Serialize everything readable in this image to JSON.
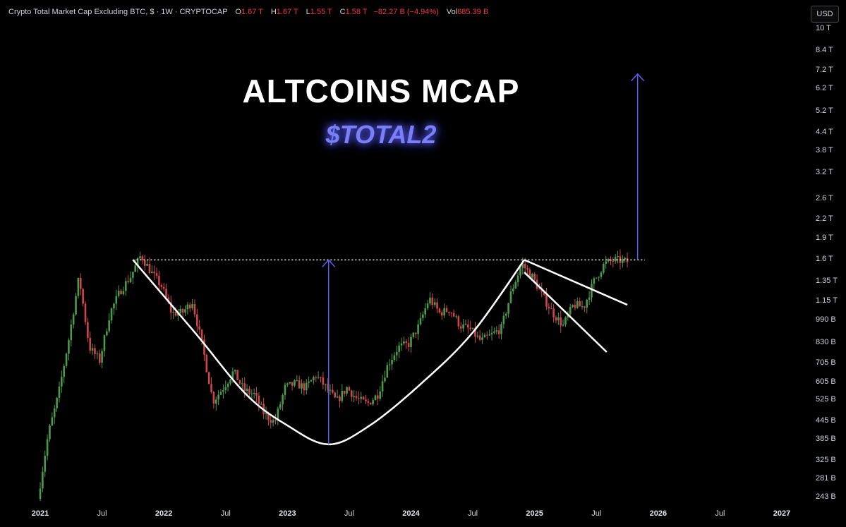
{
  "header": {
    "symbol": "Crypto Total Market Cap Excluding BTC, $ · 1W · CRYPTOCAP",
    "open_label": "O",
    "open": "1.67 T",
    "high_label": "H",
    "high": "1.67 T",
    "low_label": "L",
    "low": "1.55 T",
    "close_label": "C",
    "close": "1.58 T",
    "change": "−82.27 B (−4.94%)",
    "vol_label": "Vol",
    "vol": "685.39 B"
  },
  "currency_button": "USD",
  "overlay": {
    "title": "ALTCOINS MCAP",
    "subtitle": "$TOTAL2"
  },
  "colors": {
    "up": "#4c9a4c",
    "down": "#d0454c",
    "arrow": "#5b5ff0",
    "annotation": "#ffffff",
    "background": "#000000"
  },
  "chart_data": {
    "type": "candlestick",
    "title": "Crypto Total Market Cap Excluding BTC",
    "interval": "1W",
    "scale": "log",
    "ylim": [
      0.23,
      11.5
    ],
    "x_start": "2021-01",
    "x_end": "2027-02",
    "y_tick_labels": [
      "10 T",
      "8.4 T",
      "7.2 T",
      "6.2 T",
      "5.2 T",
      "4.4 T",
      "3.8 T",
      "3.2 T",
      "2.6 T",
      "2.2 T",
      "1.9 T",
      "1.6 T",
      "1.35 T",
      "1.15 T",
      "990 B",
      "830 B",
      "705 B",
      "605 B",
      "525 B",
      "445 B",
      "385 B",
      "325 B",
      "281 B",
      "243 B"
    ],
    "y_tick_values": [
      10,
      8.4,
      7.2,
      6.2,
      5.2,
      4.4,
      3.8,
      3.2,
      2.6,
      2.2,
      1.9,
      1.6,
      1.35,
      1.15,
      0.99,
      0.83,
      0.705,
      0.605,
      0.525,
      0.445,
      0.385,
      0.325,
      0.281,
      0.243
    ],
    "x_ticks": [
      {
        "label": "2021",
        "date": "2021-01",
        "year": true
      },
      {
        "label": "Jul",
        "date": "2021-07",
        "year": false
      },
      {
        "label": "2022",
        "date": "2022-01",
        "year": true
      },
      {
        "label": "Jul",
        "date": "2022-07",
        "year": false
      },
      {
        "label": "2023",
        "date": "2023-01",
        "year": true
      },
      {
        "label": "Jul",
        "date": "2023-07",
        "year": false
      },
      {
        "label": "2024",
        "date": "2024-01",
        "year": true
      },
      {
        "label": "Jul",
        "date": "2024-07",
        "year": false
      },
      {
        "label": "2025",
        "date": "2025-01",
        "year": true
      },
      {
        "label": "Jul",
        "date": "2025-07",
        "year": false
      },
      {
        "label": "2026",
        "date": "2026-01",
        "year": true
      },
      {
        "label": "Jul",
        "date": "2026-07",
        "year": false
      },
      {
        "label": "2027",
        "date": "2027-01",
        "year": true
      }
    ],
    "price_path": [
      [
        "2021-01",
        0.24
      ],
      [
        "2021-02",
        0.4
      ],
      [
        "2021-03",
        0.55
      ],
      [
        "2021-04",
        0.85
      ],
      [
        "2021-05",
        1.4
      ],
      [
        "2021-06",
        0.8
      ],
      [
        "2021-07",
        0.72
      ],
      [
        "2021-08",
        1.05
      ],
      [
        "2021-09",
        1.25
      ],
      [
        "2021-10",
        1.4
      ],
      [
        "2021-11",
        1.66
      ],
      [
        "2021-12",
        1.45
      ],
      [
        "2022-01",
        1.3
      ],
      [
        "2022-02",
        1.05
      ],
      [
        "2022-03",
        1.05
      ],
      [
        "2022-04",
        1.15
      ],
      [
        "2022-05",
        0.8
      ],
      [
        "2022-06",
        0.52
      ],
      [
        "2022-07",
        0.58
      ],
      [
        "2022-08",
        0.66
      ],
      [
        "2022-09",
        0.57
      ],
      [
        "2022-10",
        0.55
      ],
      [
        "2022-11",
        0.47
      ],
      [
        "2022-12",
        0.44
      ],
      [
        "2023-01",
        0.58
      ],
      [
        "2023-02",
        0.6
      ],
      [
        "2023-03",
        0.58
      ],
      [
        "2023-04",
        0.64
      ],
      [
        "2023-05",
        0.58
      ],
      [
        "2023-06",
        0.52
      ],
      [
        "2023-07",
        0.58
      ],
      [
        "2023-08",
        0.53
      ],
      [
        "2023-09",
        0.51
      ],
      [
        "2023-10",
        0.55
      ],
      [
        "2023-11",
        0.7
      ],
      [
        "2023-12",
        0.8
      ],
      [
        "2024-01",
        0.82
      ],
      [
        "2024-02",
        0.95
      ],
      [
        "2024-03",
        1.18
      ],
      [
        "2024-04",
        1.05
      ],
      [
        "2024-05",
        1.08
      ],
      [
        "2024-06",
        0.95
      ],
      [
        "2024-07",
        0.92
      ],
      [
        "2024-08",
        0.84
      ],
      [
        "2024-09",
        0.88
      ],
      [
        "2024-10",
        0.93
      ],
      [
        "2024-11",
        1.25
      ],
      [
        "2024-12",
        1.55
      ],
      [
        "2025-01",
        1.4
      ],
      [
        "2025-02",
        1.2
      ],
      [
        "2025-03",
        1.05
      ],
      [
        "2025-04",
        0.95
      ],
      [
        "2025-05",
        1.12
      ],
      [
        "2025-06",
        1.1
      ],
      [
        "2025-07",
        1.35
      ],
      [
        "2025-08",
        1.55
      ],
      [
        "2025-09",
        1.6
      ],
      [
        "2025-10",
        1.58
      ]
    ]
  },
  "annotations": {
    "resistance_level": 1.6,
    "cup_curve": [
      [
        "2021-10",
        1.6
      ],
      [
        "2022-04",
        0.9
      ],
      [
        "2022-09",
        0.55
      ],
      [
        "2023-01",
        0.43
      ],
      [
        "2023-05",
        0.37
      ],
      [
        "2023-09",
        0.43
      ],
      [
        "2024-02",
        0.6
      ],
      [
        "2024-07",
        0.9
      ],
      [
        "2024-12",
        1.6
      ]
    ],
    "measured_move_arrow": {
      "date": "2023-05",
      "from": 0.37,
      "to": 1.6
    },
    "target_arrow": {
      "date": "2025-11",
      "from": 1.6,
      "to": 7.0
    },
    "flag_upper": [
      [
        "2024-12",
        1.6
      ],
      [
        "2025-10",
        1.12
      ]
    ],
    "flag_lower": [
      [
        "2024-12",
        1.45
      ],
      [
        "2025-08",
        0.77
      ]
    ]
  }
}
